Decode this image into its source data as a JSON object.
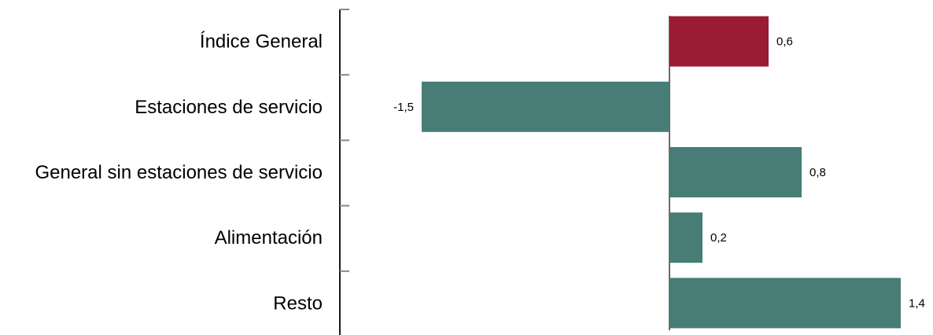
{
  "chart_data": {
    "type": "bar",
    "orientation": "horizontal",
    "categories": [
      "Índice General",
      "Estaciones de servicio",
      "General sin estaciones de servicio",
      "Alimentación",
      "Resto"
    ],
    "values": [
      0.6,
      -1.5,
      0.8,
      0.2,
      1.4
    ],
    "value_labels": [
      "0,6",
      "-1,5",
      "0,8",
      "0,2",
      "1,4"
    ],
    "bar_colors": [
      "#9b1b34",
      "#477d76",
      "#477d76",
      "#477d76",
      "#477d76"
    ],
    "title": "",
    "xlabel": "",
    "ylabel": "",
    "xlim": [
      -2.0,
      1.4
    ],
    "grid": false,
    "legend": "none"
  }
}
